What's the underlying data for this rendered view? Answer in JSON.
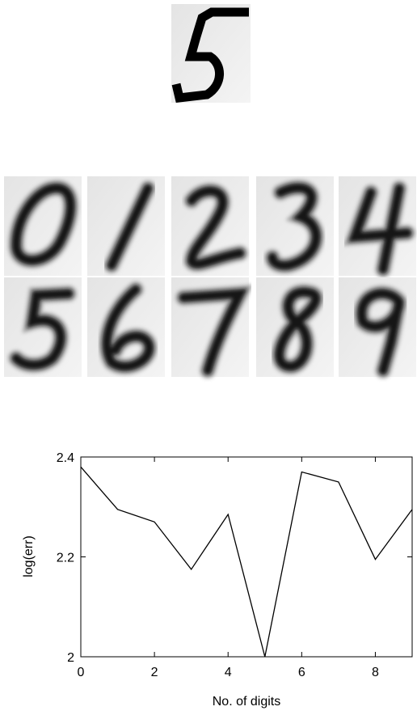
{
  "chart_data": {
    "type": "line",
    "xlabel": "No. of digits",
    "ylabel": "log(err)",
    "x": [
      0,
      1,
      2,
      3,
      4,
      5,
      6,
      7,
      8,
      9
    ],
    "values": [
      2.38,
      2.295,
      2.27,
      2.175,
      2.285,
      2.0,
      2.37,
      2.35,
      2.195,
      2.295
    ],
    "color": "#000000",
    "xlim": [
      0,
      9
    ],
    "xticks": [
      0,
      2,
      4,
      6,
      8
    ],
    "ylim": [
      2,
      2.4
    ],
    "yticks": [
      2,
      2.2,
      2.4
    ]
  }
}
